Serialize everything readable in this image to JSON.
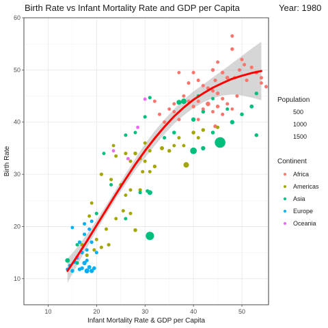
{
  "chart_data": {
    "type": "scatter",
    "title": "Birth Rate vs Infant Mortality Rate and GDP per Capita",
    "year_label": "Year: 1980",
    "xlabel": "Infant Mortality Rate & GDP per Capita",
    "ylabel": "Birth Rate",
    "xlim": [
      5,
      55.5
    ],
    "ylim": [
      5,
      60
    ],
    "x_ticks": [
      10,
      20,
      30,
      40,
      50
    ],
    "y_ticks": [
      10,
      20,
      30,
      40,
      50,
      60
    ],
    "grid": true,
    "legend_position": "right",
    "size_legend": {
      "title": "Population",
      "entries": [
        {
          "label": "500",
          "value": 500
        },
        {
          "label": "1000",
          "value": 1000
        },
        {
          "label": "1500",
          "value": 1500
        }
      ]
    },
    "color_legend": {
      "title": "Continent",
      "entries": [
        {
          "label": "Africa",
          "color": "#F8766D"
        },
        {
          "label": "Americas",
          "color": "#A3A500"
        },
        {
          "label": "Asia",
          "color": "#00BF7D"
        },
        {
          "label": "Europe",
          "color": "#00B0F6"
        },
        {
          "label": "Oceania",
          "color": "#E76BF3"
        }
      ]
    },
    "trend": {
      "x": [
        14,
        16,
        18,
        20,
        22,
        24,
        26,
        28,
        30,
        32,
        34,
        36,
        38,
        40,
        42,
        44,
        46,
        48,
        50,
        52,
        54
      ],
      "y": [
        11.5,
        14.3,
        17.2,
        20.2,
        23.2,
        26.2,
        29.1,
        31.9,
        34.5,
        36.9,
        39.1,
        41.1,
        42.8,
        44.3,
        45.5,
        46.6,
        47.5,
        48.3,
        48.9,
        49.4,
        49.8
      ],
      "lower": [
        9.2,
        12.6,
        15.9,
        19.2,
        22.3,
        25.3,
        28.1,
        30.8,
        33.2,
        35.5,
        37.7,
        39.7,
        41.3,
        42.7,
        43.8,
        44.6,
        45.1,
        45.3,
        45.1,
        44.7,
        44.2
      ],
      "upper": [
        13.8,
        16.0,
        18.5,
        21.2,
        24.1,
        27.1,
        30.1,
        33.0,
        35.8,
        38.3,
        40.5,
        42.5,
        44.3,
        45.9,
        47.2,
        48.6,
        49.9,
        51.3,
        52.7,
        54.1,
        55.4
      ],
      "color": "#FF0000"
    },
    "series": [
      {
        "name": "Africa",
        "color": "#F8766D",
        "points": [
          {
            "x": 48,
            "y": 56.5,
            "pop": 250
          },
          {
            "x": 48,
            "y": 54,
            "pop": 280
          },
          {
            "x": 50,
            "y": 52,
            "pop": 260
          },
          {
            "x": 45,
            "y": 51.5,
            "pop": 240
          },
          {
            "x": 44,
            "y": 50,
            "pop": 300
          },
          {
            "x": 46,
            "y": 49.5,
            "pop": 280
          },
          {
            "x": 47,
            "y": 48.5,
            "pop": 350
          },
          {
            "x": 44.5,
            "y": 48,
            "pop": 260
          },
          {
            "x": 48.5,
            "y": 48.5,
            "pop": 270
          },
          {
            "x": 50.5,
            "y": 51,
            "pop": 250
          },
          {
            "x": 52,
            "y": 50.5,
            "pop": 280
          },
          {
            "x": 53,
            "y": 49.5,
            "pop": 300
          },
          {
            "x": 54,
            "y": 48.5,
            "pop": 250
          },
          {
            "x": 55,
            "y": 46.8,
            "pop": 250
          },
          {
            "x": 54,
            "y": 47.5,
            "pop": 240
          },
          {
            "x": 49.5,
            "y": 50,
            "pop": 260
          },
          {
            "x": 51,
            "y": 48,
            "pop": 250
          },
          {
            "x": 37,
            "y": 49.5,
            "pop": 230
          },
          {
            "x": 39,
            "y": 47.5,
            "pop": 260
          },
          {
            "x": 40,
            "y": 49.5,
            "pop": 250
          },
          {
            "x": 41,
            "y": 48,
            "pop": 250
          },
          {
            "x": 42,
            "y": 47,
            "pop": 240
          },
          {
            "x": 43,
            "y": 46.5,
            "pop": 300
          },
          {
            "x": 44,
            "y": 46,
            "pop": 260
          },
          {
            "x": 45,
            "y": 45.5,
            "pop": 280
          },
          {
            "x": 46,
            "y": 44.5,
            "pop": 260
          },
          {
            "x": 47,
            "y": 43.5,
            "pop": 230
          },
          {
            "x": 48,
            "y": 42.5,
            "pop": 220
          },
          {
            "x": 45,
            "y": 43,
            "pop": 300
          },
          {
            "x": 43,
            "y": 43.5,
            "pop": 450
          },
          {
            "x": 41,
            "y": 44,
            "pop": 260
          },
          {
            "x": 40,
            "y": 43,
            "pop": 280
          },
          {
            "x": 39,
            "y": 44,
            "pop": 240
          },
          {
            "x": 38,
            "y": 45,
            "pop": 250
          },
          {
            "x": 42,
            "y": 42.5,
            "pop": 240
          },
          {
            "x": 44,
            "y": 42,
            "pop": 240
          },
          {
            "x": 46,
            "y": 41.5,
            "pop": 260
          },
          {
            "x": 36,
            "y": 43.5,
            "pop": 230
          },
          {
            "x": 35,
            "y": 42.5,
            "pop": 230
          },
          {
            "x": 37,
            "y": 40.5,
            "pop": 240
          },
          {
            "x": 34,
            "y": 40,
            "pop": 250
          },
          {
            "x": 33,
            "y": 41.5,
            "pop": 240
          },
          {
            "x": 44.5,
            "y": 39.2,
            "pop": 300
          },
          {
            "x": 32,
            "y": 44,
            "pop": 240
          },
          {
            "x": 41,
            "y": 40.5,
            "pop": 230
          },
          {
            "x": 49,
            "y": 45,
            "pop": 250
          },
          {
            "x": 36,
            "y": 42,
            "pop": 230
          }
        ]
      },
      {
        "name": "Americas",
        "color": "#A3A500",
        "points": [
          {
            "x": 23.5,
            "y": 35.5,
            "pop": 220
          },
          {
            "x": 24,
            "y": 33.5,
            "pop": 240
          },
          {
            "x": 26,
            "y": 34,
            "pop": 260
          },
          {
            "x": 27,
            "y": 32.5,
            "pop": 250
          },
          {
            "x": 28,
            "y": 34,
            "pop": 300
          },
          {
            "x": 29,
            "y": 33,
            "pop": 250
          },
          {
            "x": 30,
            "y": 32.5,
            "pop": 240
          },
          {
            "x": 30,
            "y": 36,
            "pop": 230
          },
          {
            "x": 31,
            "y": 34.5,
            "pop": 230
          },
          {
            "x": 29.5,
            "y": 30.5,
            "pop": 240
          },
          {
            "x": 31,
            "y": 30.5,
            "pop": 230
          },
          {
            "x": 32,
            "y": 31.5,
            "pop": 280
          },
          {
            "x": 33.5,
            "y": 35,
            "pop": 350
          },
          {
            "x": 35,
            "y": 34.5,
            "pop": 280
          },
          {
            "x": 36,
            "y": 35.5,
            "pop": 230
          },
          {
            "x": 37,
            "y": 37,
            "pop": 240
          },
          {
            "x": 38,
            "y": 35.5,
            "pop": 230
          },
          {
            "x": 40,
            "y": 38,
            "pop": 300
          },
          {
            "x": 41,
            "y": 37,
            "pop": 240
          },
          {
            "x": 42,
            "y": 38.5,
            "pop": 280
          },
          {
            "x": 45,
            "y": 39,
            "pop": 240
          },
          {
            "x": 21,
            "y": 30,
            "pop": 260
          },
          {
            "x": 23,
            "y": 29,
            "pop": 240
          },
          {
            "x": 25,
            "y": 28,
            "pop": 240
          },
          {
            "x": 26,
            "y": 26,
            "pop": 230
          },
          {
            "x": 27,
            "y": 27,
            "pop": 240
          },
          {
            "x": 29,
            "y": 27,
            "pop": 260
          },
          {
            "x": 25.5,
            "y": 23,
            "pop": 250
          },
          {
            "x": 27,
            "y": 22.5,
            "pop": 240
          },
          {
            "x": 28,
            "y": 19.3,
            "pop": 300
          },
          {
            "x": 22,
            "y": 19.5,
            "pop": 240
          },
          {
            "x": 22.5,
            "y": 16.5,
            "pop": 260
          },
          {
            "x": 21,
            "y": 16,
            "pop": 250
          },
          {
            "x": 20,
            "y": 17.5,
            "pop": 230
          },
          {
            "x": 19,
            "y": 24.5,
            "pop": 230
          },
          {
            "x": 18.5,
            "y": 22,
            "pop": 230
          },
          {
            "x": 17,
            "y": 16.5,
            "pop": 240
          },
          {
            "x": 24,
            "y": 21.5,
            "pop": 230
          },
          {
            "x": 19.5,
            "y": 15.5,
            "pop": 240
          },
          {
            "x": 38.5,
            "y": 31.8,
            "pop": 600
          },
          {
            "x": 18,
            "y": 14.5,
            "pop": 260
          }
        ]
      },
      {
        "name": "Asia",
        "color": "#00BF7D",
        "points": [
          {
            "x": 37,
            "y": 43.8,
            "pop": 500
          },
          {
            "x": 38,
            "y": 44,
            "pop": 600
          },
          {
            "x": 40,
            "y": 40.5,
            "pop": 400
          },
          {
            "x": 42,
            "y": 42,
            "pop": 300
          },
          {
            "x": 41,
            "y": 45,
            "pop": 250
          },
          {
            "x": 44,
            "y": 44.5,
            "pop": 240
          },
          {
            "x": 47,
            "y": 42.5,
            "pop": 240
          },
          {
            "x": 50,
            "y": 41.5,
            "pop": 300
          },
          {
            "x": 52,
            "y": 43,
            "pop": 330
          },
          {
            "x": 53,
            "y": 45.5,
            "pop": 280
          },
          {
            "x": 53,
            "y": 37.5,
            "pop": 300
          },
          {
            "x": 45.5,
            "y": 36.1,
            "pop": 1500
          },
          {
            "x": 40,
            "y": 34.5,
            "pop": 800
          },
          {
            "x": 42,
            "y": 35,
            "pop": 400
          },
          {
            "x": 36,
            "y": 38,
            "pop": 300
          },
          {
            "x": 34,
            "y": 37,
            "pop": 260
          },
          {
            "x": 31,
            "y": 44.7,
            "pop": 260
          },
          {
            "x": 30,
            "y": 41,
            "pop": 250
          },
          {
            "x": 28,
            "y": 38,
            "pop": 230
          },
          {
            "x": 26,
            "y": 37.5,
            "pop": 250
          },
          {
            "x": 30.5,
            "y": 26.8,
            "pop": 280
          },
          {
            "x": 31,
            "y": 26.5,
            "pop": 500
          },
          {
            "x": 29,
            "y": 26.5,
            "pop": 240
          },
          {
            "x": 31,
            "y": 18.2,
            "pop": 1100
          },
          {
            "x": 26,
            "y": 21.5,
            "pop": 250
          },
          {
            "x": 23,
            "y": 28,
            "pop": 240
          },
          {
            "x": 20,
            "y": 22.5,
            "pop": 250
          },
          {
            "x": 16,
            "y": 16.5,
            "pop": 240
          },
          {
            "x": 14,
            "y": 13.5,
            "pop": 450
          },
          {
            "x": 16,
            "y": 13,
            "pop": 260
          },
          {
            "x": 21.5,
            "y": 34,
            "pop": 230
          },
          {
            "x": 44,
            "y": 38,
            "pop": 300
          },
          {
            "x": 48,
            "y": 40,
            "pop": 400
          }
        ]
      },
      {
        "name": "Europe",
        "color": "#00B0F6",
        "points": [
          {
            "x": 17,
            "y": 12,
            "pop": 300
          },
          {
            "x": 17.5,
            "y": 13,
            "pop": 400
          },
          {
            "x": 18,
            "y": 11.5,
            "pop": 500
          },
          {
            "x": 18.5,
            "y": 12.2,
            "pop": 350
          },
          {
            "x": 19,
            "y": 11.5,
            "pop": 400
          },
          {
            "x": 19.5,
            "y": 12,
            "pop": 320
          },
          {
            "x": 16.5,
            "y": 11.8,
            "pop": 300
          },
          {
            "x": 15,
            "y": 11.5,
            "pop": 300
          },
          {
            "x": 14.5,
            "y": 12.5,
            "pop": 260
          },
          {
            "x": 15.5,
            "y": 13.2,
            "pop": 300
          },
          {
            "x": 16,
            "y": 14,
            "pop": 260
          },
          {
            "x": 17,
            "y": 15,
            "pop": 260
          },
          {
            "x": 18,
            "y": 15.5,
            "pop": 250
          },
          {
            "x": 16.5,
            "y": 17,
            "pop": 260
          },
          {
            "x": 17.5,
            "y": 18.5,
            "pop": 250
          },
          {
            "x": 19,
            "y": 17,
            "pop": 250
          },
          {
            "x": 18.5,
            "y": 19.5,
            "pop": 260
          },
          {
            "x": 17.5,
            "y": 20.5,
            "pop": 250
          },
          {
            "x": 19,
            "y": 21,
            "pop": 250
          },
          {
            "x": 15,
            "y": 19.8,
            "pop": 220
          },
          {
            "x": 20,
            "y": 15,
            "pop": 240
          },
          {
            "x": 14,
            "y": 11.8,
            "pop": 260
          },
          {
            "x": 18,
            "y": 13.5,
            "pop": 260
          }
        ]
      },
      {
        "name": "Oceania",
        "color": "#E76BF3",
        "points": [
          {
            "x": 30,
            "y": 44.4,
            "pop": 230
          },
          {
            "x": 28.5,
            "y": 39,
            "pop": 230
          },
          {
            "x": 26.5,
            "y": 33,
            "pop": 230
          },
          {
            "x": 23.5,
            "y": 34.5,
            "pop": 220
          },
          {
            "x": 16,
            "y": 14.2,
            "pop": 230
          }
        ]
      }
    ]
  }
}
